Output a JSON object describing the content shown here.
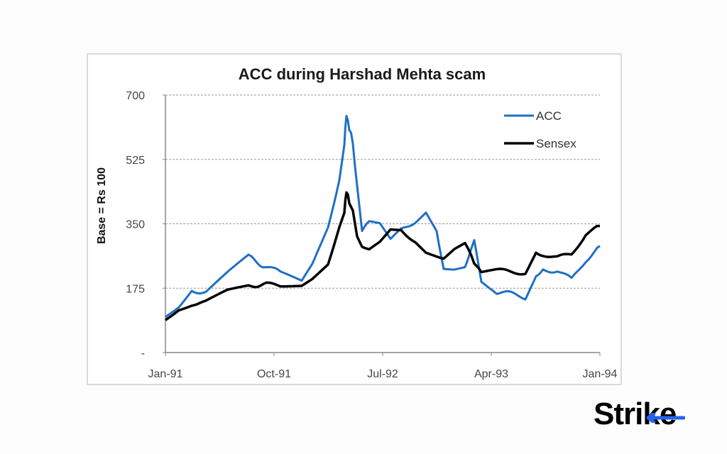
{
  "chart_data": {
    "type": "line",
    "title": "ACC during Harshad Mehta scam",
    "xlabel": "",
    "ylabel": "Base = Rs 100",
    "ylim": [
      0,
      700
    ],
    "yticks": [
      0,
      175,
      350,
      525,
      700
    ],
    "ytick_labels": [
      "-",
      "175",
      "350",
      "525",
      "700"
    ],
    "xtick_labels": [
      "Jan-91",
      "Oct-91",
      "Jul-92",
      "Apr-93",
      "Jan-94"
    ],
    "grid": "horizontal dashed",
    "legend_position": "top-right",
    "x": [
      "Jan-91",
      "Feb-91",
      "Mar-91",
      "Apr-91",
      "May-91",
      "Jun-91",
      "Jul-91",
      "Aug-91",
      "Sep-91",
      "Oct-91",
      "Nov-91",
      "Dec-91",
      "Jan-92",
      "Feb-92",
      "Mar-92",
      "Mid-Mar-92",
      "Apr-92",
      "Mid-Apr-92",
      "May-92",
      "Jun-92",
      "Jul-92",
      "Aug-92",
      "Sep-92",
      "Oct-92",
      "Nov-92",
      "Dec-92",
      "Jan-93",
      "Feb-93",
      "Mar-93",
      "Apr-93",
      "May-93",
      "Jun-93",
      "Jul-93",
      "Aug-93",
      "Sep-93",
      "Oct-93",
      "Nov-93",
      "Dec-93",
      "Jan-94"
    ],
    "series": [
      {
        "name": "ACC",
        "color": "#1f6fc5",
        "values": [
          99,
          130,
          170,
          167,
          215,
          259,
          234,
          215,
          195,
          244,
          340,
          476,
          572,
          645,
          610,
          570,
          458,
          330,
          350,
          344,
          302,
          332,
          360,
          387,
          335,
          232,
          232,
          240,
          298,
          195,
          164,
          158,
          152,
          215,
          225,
          225,
          196,
          253,
          290
        ]
      },
      {
        "name": "Sensex",
        "color": "#000000",
        "values": [
          93,
          118,
          132,
          137,
          166,
          180,
          186,
          182,
          186,
          205,
          244,
          340,
          382,
          440,
          410,
          382,
          320,
          292,
          278,
          300,
          335,
          335,
          300,
          270,
          258,
          260,
          285,
          300,
          240,
          215,
          224,
          220,
          216,
          272,
          267,
          259,
          267,
          321,
          344
        ]
      }
    ]
  },
  "legend": {
    "acc_label": "ACC",
    "sensex_label": "Sensex"
  },
  "logo": {
    "text_main": "Stri",
    "text_accent": "ke",
    "accent_color": "#2563eb"
  }
}
